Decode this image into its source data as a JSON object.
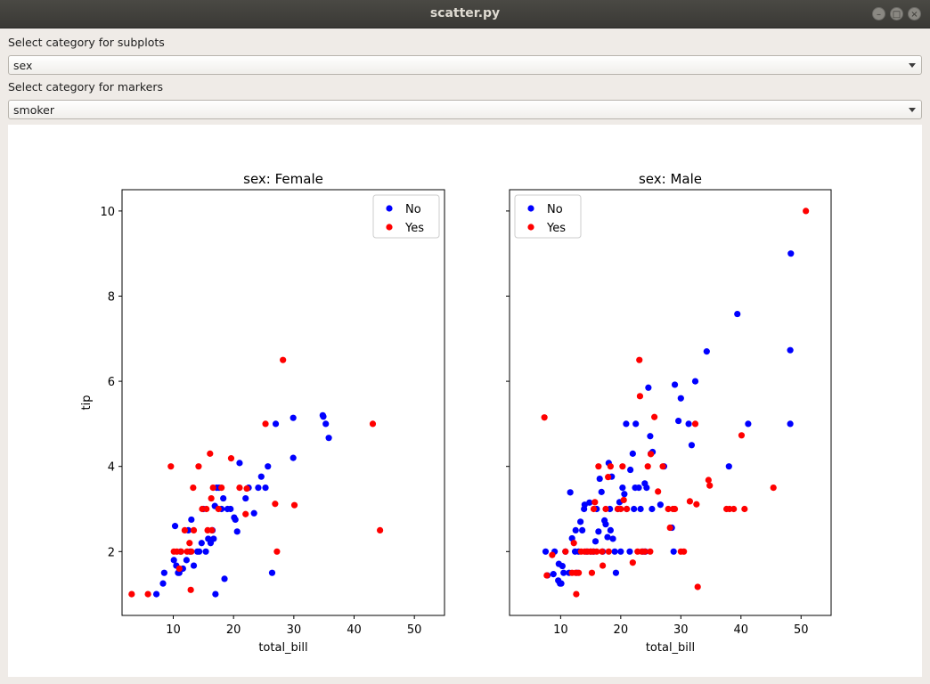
{
  "window": {
    "title": "scatter.py"
  },
  "controls": {
    "subplots_label": "Select category for subplots",
    "subplots_value": "sex",
    "markers_label": "Select category for markers",
    "markers_value": "smoker"
  },
  "colors": {
    "No": "#0000ff",
    "Yes": "#ff0000"
  },
  "chart_data": [
    {
      "type": "scatter",
      "title": "sex: Female",
      "xlabel": "total_bill",
      "ylabel": "tip",
      "xlim": [
        1.5,
        55
      ],
      "ylim": [
        0.5,
        10.5
      ],
      "xticks": [
        10,
        20,
        30,
        40,
        50
      ],
      "yticks": [
        2,
        4,
        6,
        8,
        10
      ],
      "legend": "top-right",
      "series": [
        {
          "name": "No",
          "color": "#0000ff",
          "points": [
            [
              7.2,
              1.0
            ],
            [
              8.3,
              1.25
            ],
            [
              8.5,
              1.5
            ],
            [
              10.1,
              1.8
            ],
            [
              10.3,
              2.6
            ],
            [
              10.5,
              1.67
            ],
            [
              10.8,
              1.5
            ],
            [
              11.0,
              1.5
            ],
            [
              11.2,
              2.0
            ],
            [
              11.6,
              1.6
            ],
            [
              12.2,
              1.8
            ],
            [
              12.5,
              2.5
            ],
            [
              12.8,
              2.0
            ],
            [
              13.0,
              2.75
            ],
            [
              13.4,
              1.67
            ],
            [
              14.0,
              2.0
            ],
            [
              14.3,
              2.0
            ],
            [
              14.7,
              2.2
            ],
            [
              15.0,
              3.0
            ],
            [
              15.4,
              2.0
            ],
            [
              15.8,
              2.3
            ],
            [
              16.2,
              2.2
            ],
            [
              16.5,
              2.5
            ],
            [
              16.7,
              2.3
            ],
            [
              16.9,
              3.07
            ],
            [
              17.0,
              1.0
            ],
            [
              17.2,
              3.5
            ],
            [
              17.6,
              3.5
            ],
            [
              18.0,
              3.0
            ],
            [
              18.3,
              3.25
            ],
            [
              18.5,
              1.36
            ],
            [
              19.0,
              3.0
            ],
            [
              19.5,
              3.0
            ],
            [
              20.1,
              2.8
            ],
            [
              20.3,
              2.75
            ],
            [
              20.6,
              2.47
            ],
            [
              21.0,
              4.08
            ],
            [
              22.0,
              3.25
            ],
            [
              22.5,
              3.5
            ],
            [
              23.4,
              2.9
            ],
            [
              24.1,
              3.5
            ],
            [
              24.6,
              3.76
            ],
            [
              25.3,
              3.5
            ],
            [
              25.7,
              4.0
            ],
            [
              26.4,
              1.5
            ],
            [
              27.0,
              5.0
            ],
            [
              29.9,
              4.2
            ],
            [
              29.9,
              5.14
            ],
            [
              34.8,
              5.2
            ],
            [
              34.9,
              5.17
            ],
            [
              35.3,
              5.0
            ],
            [
              35.8,
              4.67
            ]
          ]
        },
        {
          "name": "Yes",
          "color": "#ff0000",
          "points": [
            [
              3.1,
              1.0
            ],
            [
              5.8,
              1.0
            ],
            [
              9.6,
              4.0
            ],
            [
              10.1,
              2.0
            ],
            [
              10.6,
              2.0
            ],
            [
              11.0,
              1.6
            ],
            [
              11.3,
              2.0
            ],
            [
              11.9,
              2.5
            ],
            [
              12.3,
              2.0
            ],
            [
              12.7,
              2.2
            ],
            [
              12.9,
              1.1
            ],
            [
              13.0,
              2.0
            ],
            [
              13.3,
              3.5
            ],
            [
              13.4,
              2.5
            ],
            [
              14.2,
              4.0
            ],
            [
              14.8,
              3.0
            ],
            [
              15.5,
              3.0
            ],
            [
              15.7,
              2.5
            ],
            [
              16.1,
              4.3
            ],
            [
              16.3,
              3.25
            ],
            [
              16.4,
              2.5
            ],
            [
              16.6,
              3.5
            ],
            [
              17.5,
              3.0
            ],
            [
              18.0,
              3.5
            ],
            [
              19.6,
              4.19
            ],
            [
              21.0,
              3.5
            ],
            [
              22.0,
              2.88
            ],
            [
              22.2,
              3.48
            ],
            [
              25.3,
              5.0
            ],
            [
              26.9,
              3.12
            ],
            [
              27.2,
              2.0
            ],
            [
              28.2,
              6.5
            ],
            [
              30.1,
              3.09
            ],
            [
              43.1,
              5.0
            ],
            [
              44.3,
              2.5
            ]
          ]
        }
      ]
    },
    {
      "type": "scatter",
      "title": "sex: Male",
      "xlabel": "total_bill",
      "ylabel": "",
      "xlim": [
        1.5,
        55
      ],
      "ylim": [
        0.5,
        10.5
      ],
      "xticks": [
        10,
        20,
        30,
        40,
        50
      ],
      "yticks": [
        2,
        4,
        6,
        8,
        10
      ],
      "legend": "top-left",
      "series": [
        {
          "name": "No",
          "color": "#0000ff",
          "points": [
            [
              7.5,
              2.0
            ],
            [
              7.8,
              1.44
            ],
            [
              8.8,
              1.47
            ],
            [
              9.0,
              2.0
            ],
            [
              9.6,
              1.32
            ],
            [
              9.7,
              1.71
            ],
            [
              9.9,
              1.25
            ],
            [
              10.1,
              1.25
            ],
            [
              10.3,
              1.66
            ],
            [
              10.5,
              1.5
            ],
            [
              10.8,
              2.0
            ],
            [
              11.4,
              1.5
            ],
            [
              11.6,
              3.39
            ],
            [
              11.9,
              2.31
            ],
            [
              12.4,
              2.0
            ],
            [
              12.5,
              2.5
            ],
            [
              12.7,
              1.5
            ],
            [
              13.0,
              2.0
            ],
            [
              13.3,
              2.7
            ],
            [
              13.6,
              2.5
            ],
            [
              13.9,
              3.0
            ],
            [
              14.0,
              3.1
            ],
            [
              14.3,
              2.0
            ],
            [
              14.8,
              3.15
            ],
            [
              15.0,
              2.0
            ],
            [
              15.5,
              2.0
            ],
            [
              15.8,
              2.24
            ],
            [
              16.0,
              3.0
            ],
            [
              16.3,
              2.47
            ],
            [
              16.5,
              3.71
            ],
            [
              16.8,
              3.4
            ],
            [
              17.0,
              2.0
            ],
            [
              17.3,
              2.73
            ],
            [
              17.5,
              2.64
            ],
            [
              17.8,
              2.34
            ],
            [
              18.0,
              4.08
            ],
            [
              18.2,
              3.0
            ],
            [
              18.3,
              2.5
            ],
            [
              18.5,
              3.76
            ],
            [
              18.7,
              2.3
            ],
            [
              19.0,
              2.0
            ],
            [
              19.2,
              1.5
            ],
            [
              19.5,
              3.0
            ],
            [
              19.8,
              3.16
            ],
            [
              20.0,
              2.0
            ],
            [
              20.3,
              3.5
            ],
            [
              20.6,
              3.35
            ],
            [
              20.9,
              5.0
            ],
            [
              21.0,
              3.0
            ],
            [
              21.5,
              2.0
            ],
            [
              21.6,
              3.92
            ],
            [
              22.0,
              4.3
            ],
            [
              22.2,
              3.0
            ],
            [
              22.4,
              3.5
            ],
            [
              22.5,
              5.0
            ],
            [
              23.0,
              3.5
            ],
            [
              23.3,
              3.0
            ],
            [
              23.7,
              2.0
            ],
            [
              24.0,
              3.6
            ],
            [
              24.1,
              2.0
            ],
            [
              24.3,
              3.5
            ],
            [
              24.6,
              5.85
            ],
            [
              24.9,
              4.71
            ],
            [
              25.0,
              4.3
            ],
            [
              25.2,
              3.0
            ],
            [
              25.3,
              4.34
            ],
            [
              26.6,
              3.1
            ],
            [
              27.2,
              4.0
            ],
            [
              28.5,
              2.56
            ],
            [
              28.8,
              2.0
            ],
            [
              29.0,
              5.92
            ],
            [
              29.6,
              5.07
            ],
            [
              30.0,
              5.6
            ],
            [
              31.3,
              5.0
            ],
            [
              31.8,
              4.5
            ],
            [
              32.4,
              6.0
            ],
            [
              34.3,
              6.7
            ],
            [
              38.0,
              4.0
            ],
            [
              39.4,
              7.58
            ],
            [
              41.2,
              5.0
            ],
            [
              48.2,
              5.0
            ],
            [
              48.2,
              6.73
            ],
            [
              48.3,
              9.0
            ]
          ]
        },
        {
          "name": "Yes",
          "color": "#ff0000",
          "points": [
            [
              7.3,
              5.15
            ],
            [
              7.7,
              1.44
            ],
            [
              8.6,
              1.92
            ],
            [
              10.8,
              2.0
            ],
            [
              11.9,
              1.5
            ],
            [
              12.2,
              2.2
            ],
            [
              12.5,
              1.5
            ],
            [
              12.6,
              1.0
            ],
            [
              13.0,
              1.5
            ],
            [
              13.4,
              2.0
            ],
            [
              14.0,
              2.0
            ],
            [
              14.5,
              2.0
            ],
            [
              15.0,
              2.0
            ],
            [
              15.2,
              1.5
            ],
            [
              15.4,
              2.0
            ],
            [
              15.5,
              3.0
            ],
            [
              15.7,
              3.16
            ],
            [
              16.0,
              2.0
            ],
            [
              16.3,
              4.0
            ],
            [
              16.9,
              2.0
            ],
            [
              17.0,
              1.67
            ],
            [
              17.5,
              3.0
            ],
            [
              17.9,
              3.75
            ],
            [
              18.0,
              2.0
            ],
            [
              18.3,
              4.0
            ],
            [
              19.5,
              3.0
            ],
            [
              20.0,
              3.0
            ],
            [
              20.3,
              4.0
            ],
            [
              20.5,
              3.21
            ],
            [
              21.0,
              3.0
            ],
            [
              22.0,
              1.74
            ],
            [
              22.8,
              2.0
            ],
            [
              23.1,
              6.5
            ],
            [
              23.2,
              5.65
            ],
            [
              23.5,
              2.0
            ],
            [
              24.0,
              2.0
            ],
            [
              24.5,
              4.0
            ],
            [
              24.9,
              2.0
            ],
            [
              25.0,
              4.29
            ],
            [
              25.6,
              5.16
            ],
            [
              26.2,
              3.41
            ],
            [
              27.0,
              4.0
            ],
            [
              27.9,
              3.0
            ],
            [
              28.2,
              2.56
            ],
            [
              28.7,
              3.0
            ],
            [
              29.0,
              3.0
            ],
            [
              30.0,
              2.0
            ],
            [
              30.5,
              2.0
            ],
            [
              31.5,
              3.18
            ],
            [
              32.4,
              5.0
            ],
            [
              32.6,
              3.11
            ],
            [
              32.8,
              1.17
            ],
            [
              34.6,
              3.68
            ],
            [
              34.8,
              3.55
            ],
            [
              37.6,
              3.0
            ],
            [
              38.1,
              3.0
            ],
            [
              38.8,
              3.0
            ],
            [
              40.1,
              4.73
            ],
            [
              40.6,
              3.0
            ],
            [
              45.4,
              3.5
            ],
            [
              50.8,
              10.0
            ]
          ]
        }
      ]
    }
  ]
}
